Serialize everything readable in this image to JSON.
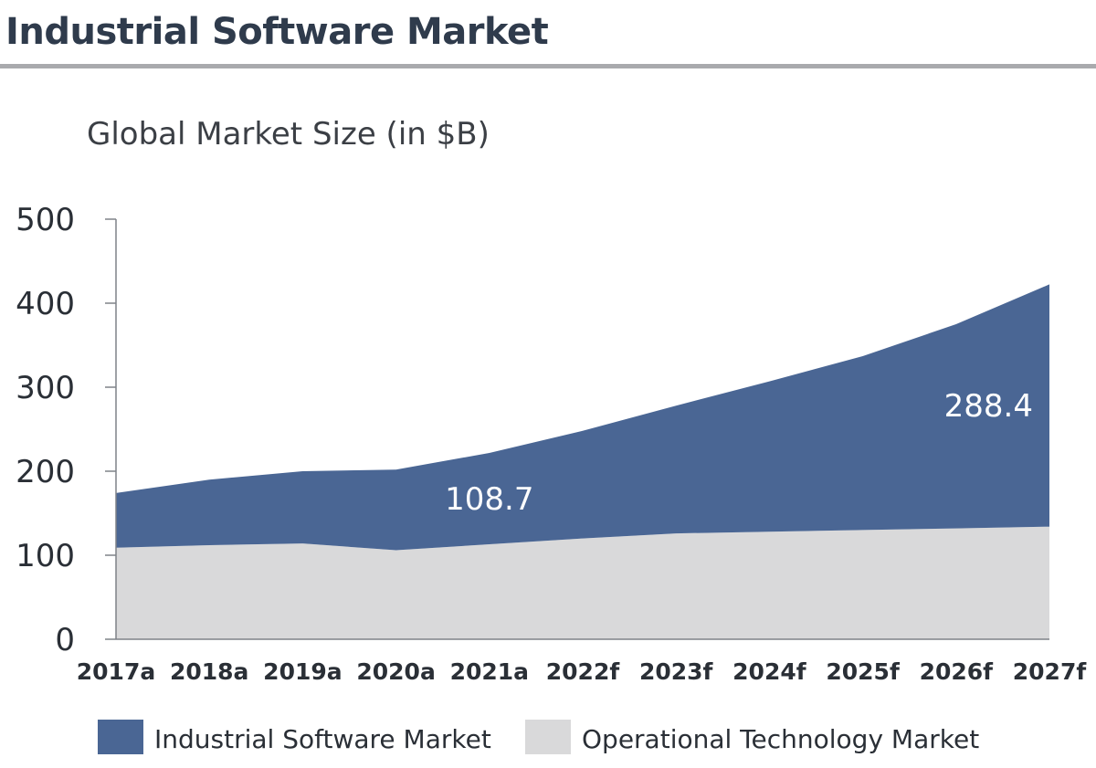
{
  "header": {
    "title": "Industrial Software Market"
  },
  "chart_data": {
    "type": "area",
    "stacked": true,
    "title": "Global Market Size (in $B)",
    "xlabel": "",
    "ylabel": "",
    "categories": [
      "2017a",
      "2018a",
      "2019a",
      "2020a",
      "2021a",
      "2022f",
      "2023f",
      "2024f",
      "2025f",
      "2026f",
      "2027f"
    ],
    "ylim": [
      0,
      500
    ],
    "yticks": [
      0,
      100,
      200,
      300,
      400,
      500
    ],
    "grid": false,
    "legend_position": "bottom",
    "series": [
      {
        "name": "Operational Technology Market",
        "color": "#d9d9da",
        "values": [
          109,
          112,
          114,
          106,
          113,
          120,
          126,
          128,
          130,
          132,
          134
        ]
      },
      {
        "name": "Industrial Software Market",
        "color": "#4a6694",
        "values": [
          65,
          78,
          86,
          96,
          108.7,
          128,
          152,
          179,
          207,
          243,
          288.4
        ]
      }
    ],
    "annotations": [
      {
        "text": "108.7",
        "category": "2021a",
        "series": "Industrial Software Market"
      },
      {
        "text": "288.4",
        "category": "2027f",
        "series": "Industrial Software Market"
      }
    ]
  }
}
